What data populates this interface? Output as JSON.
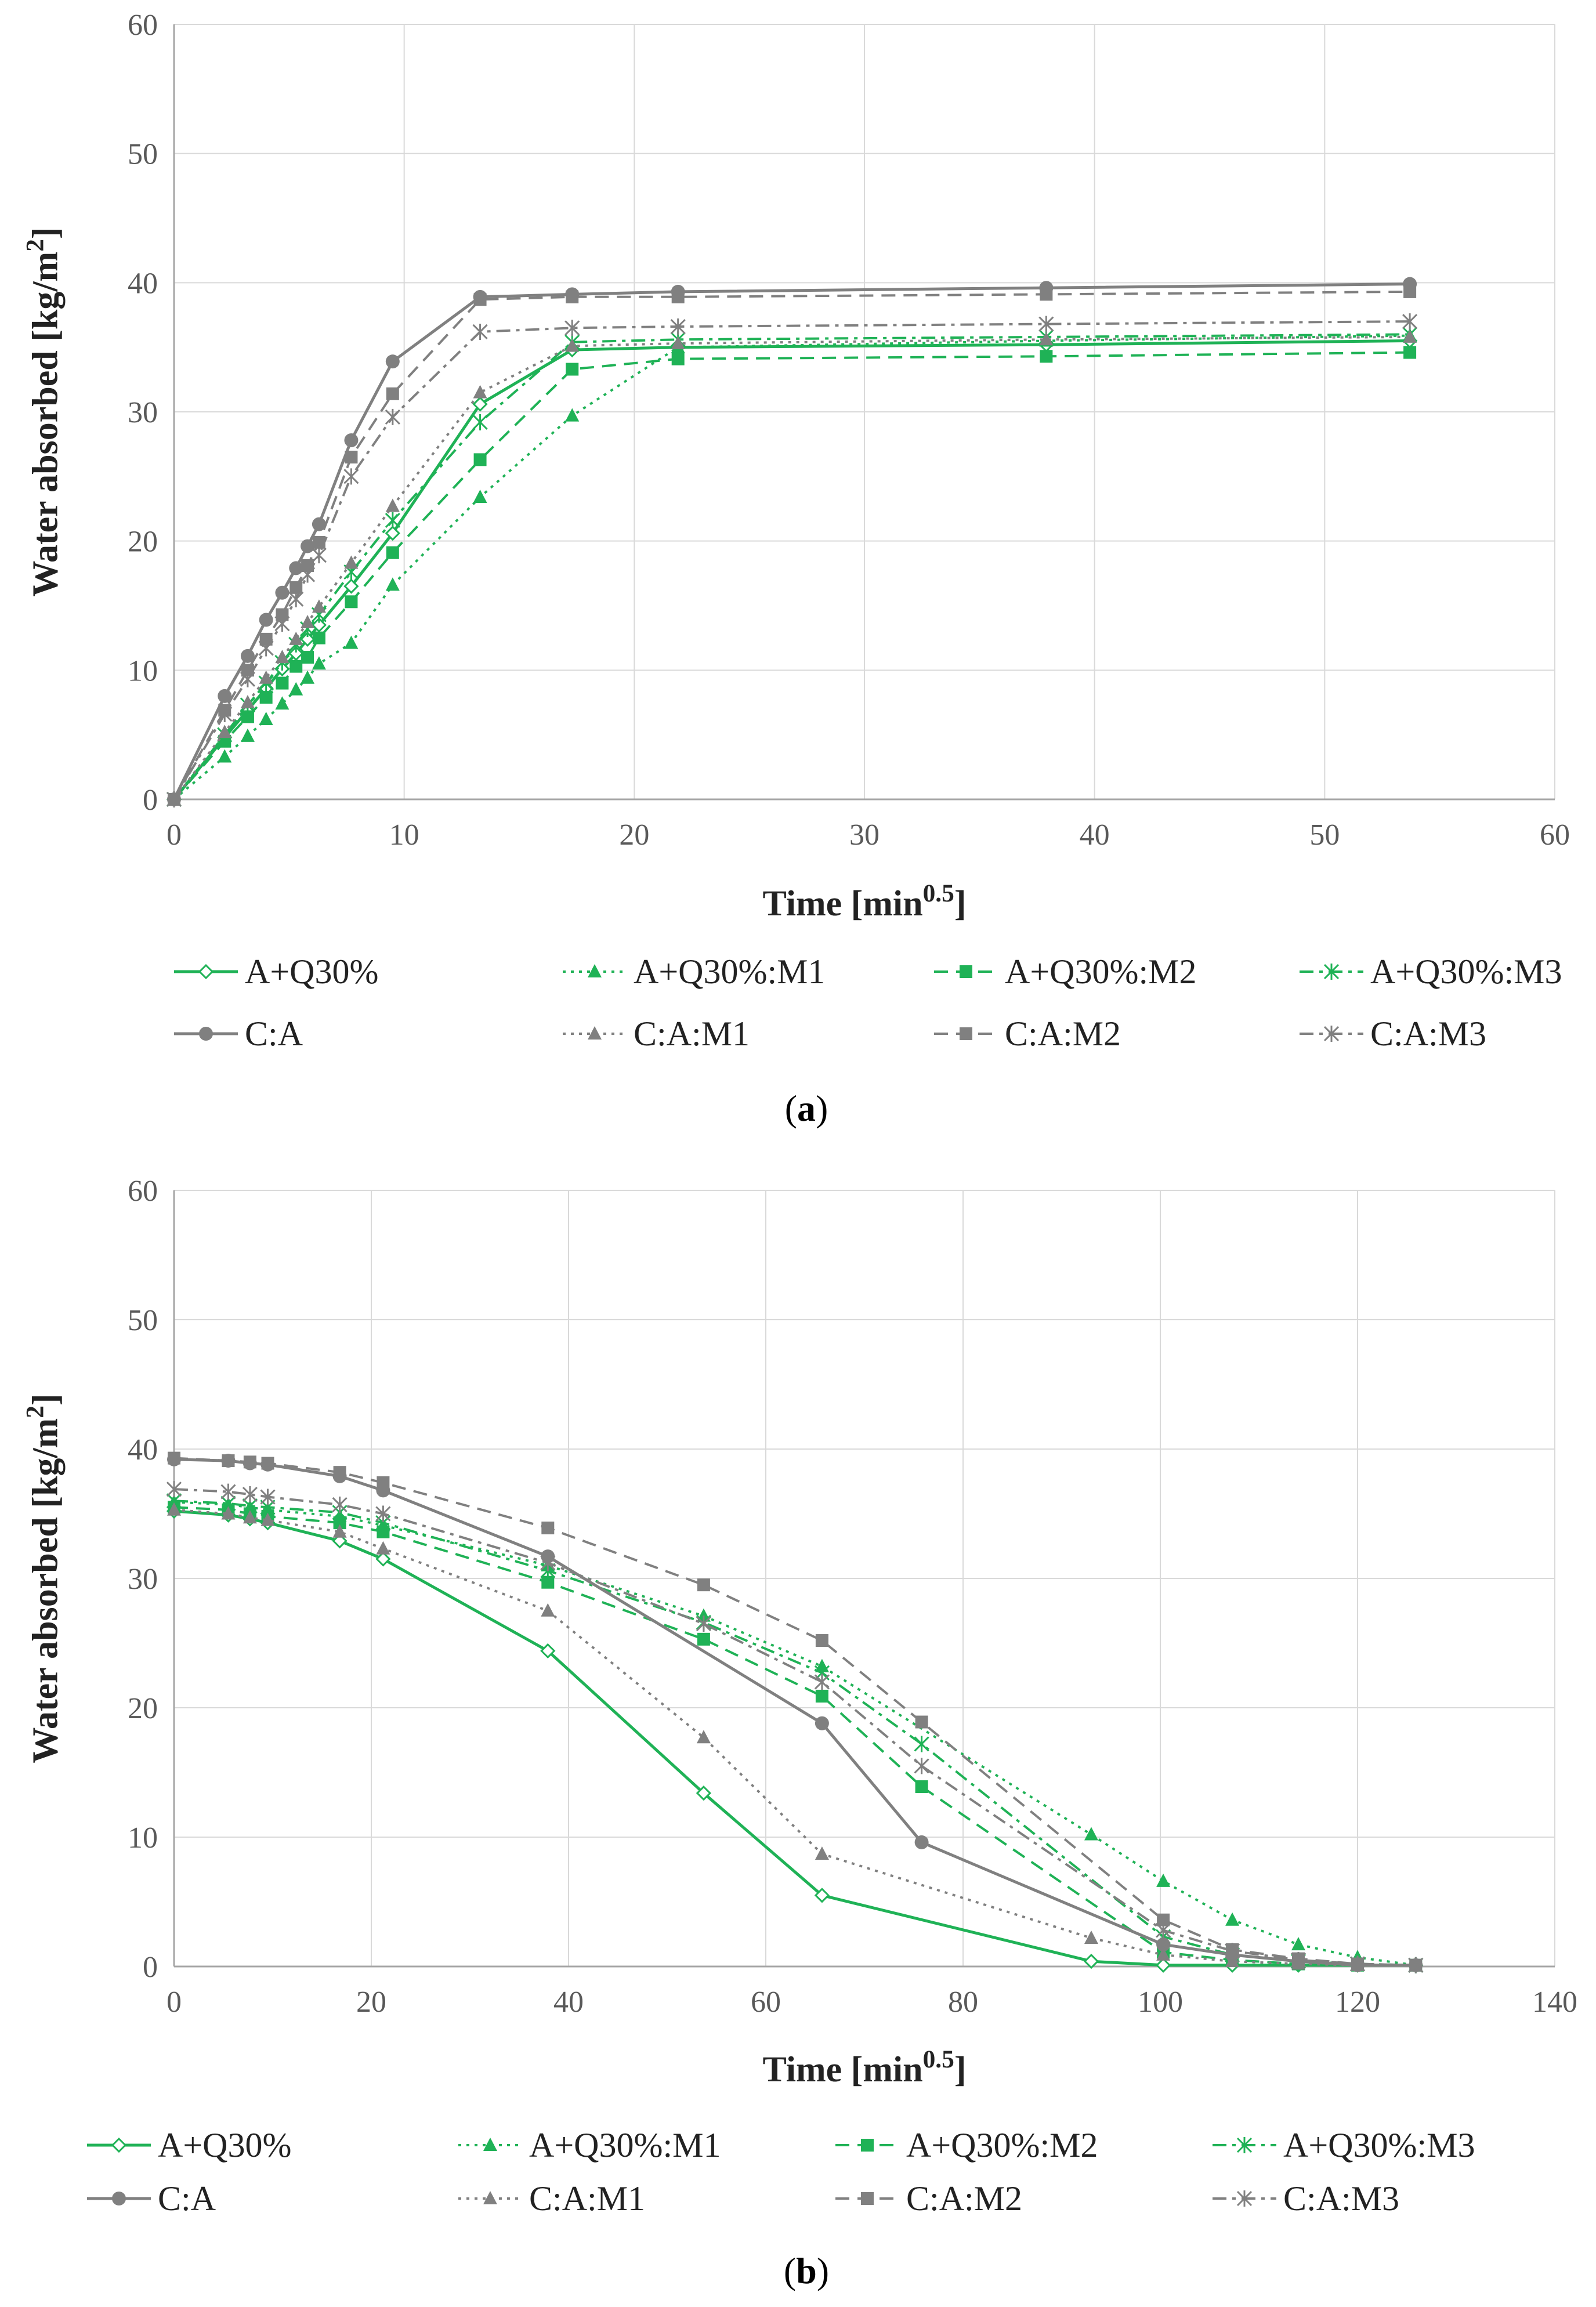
{
  "chart_data": [
    {
      "type": "line",
      "panel_label": "(a)",
      "panel_letter": "a",
      "xlabel": "Time [min",
      "xlabel_sup": "0.5",
      "xlabel_end": "]",
      "ylabel": "Water absorbed [kg/m",
      "ylabel_sup": "2",
      "ylabel_end": "]",
      "xlim": [
        0,
        60
      ],
      "ylim": [
        0,
        60
      ],
      "xticks": [
        0,
        10,
        20,
        30,
        40,
        50,
        60
      ],
      "yticks": [
        0,
        10,
        20,
        30,
        40,
        50,
        60
      ],
      "grid": true,
      "legend_position": "bottom",
      "series": [
        {
          "name": "A+Q30%",
          "color": "#1fb256",
          "dash": "solid",
          "marker": "diamond-open",
          "x": [
            0,
            2.2,
            3.2,
            4,
            4.7,
            5.3,
            5.8,
            6.3,
            7.7,
            9.5,
            13.3,
            17.3,
            21.9,
            37.9,
            53.7
          ],
          "y": [
            0,
            4.8,
            6.9,
            8.6,
            10.1,
            11.3,
            12.4,
            13.5,
            16.5,
            20.6,
            30.6,
            34.8,
            35.0,
            35.2,
            35.5
          ]
        },
        {
          "name": "A+Q30%:M1",
          "color": "#1fb256",
          "dash": "dot",
          "marker": "triangle",
          "x": [
            0,
            2.2,
            3.2,
            4,
            4.7,
            5.3,
            5.8,
            6.3,
            7.7,
            9.5,
            13.3,
            17.3,
            21.9,
            37.9,
            53.7
          ],
          "y": [
            0,
            3.3,
            4.9,
            6.2,
            7.4,
            8.5,
            9.4,
            10.5,
            12.1,
            16.6,
            23.4,
            29.7,
            35.0,
            35.5,
            35.9
          ]
        },
        {
          "name": "A+Q30%:M2",
          "color": "#1fb256",
          "dash": "dash",
          "marker": "square",
          "x": [
            0,
            2.2,
            3.2,
            4,
            4.7,
            5.3,
            5.8,
            6.3,
            7.7,
            9.5,
            13.3,
            17.3,
            21.9,
            37.9,
            53.7
          ],
          "y": [
            0,
            4.5,
            6.4,
            7.9,
            9.0,
            10.3,
            11.0,
            12.5,
            15.3,
            19.1,
            26.3,
            33.3,
            34.1,
            34.3,
            34.6
          ]
        },
        {
          "name": "A+Q30%:M3",
          "color": "#1fb256",
          "dash": "dashdot",
          "marker": "asterisk",
          "x": [
            0,
            2.2,
            3.2,
            4,
            4.7,
            5.3,
            5.8,
            6.3,
            7.7,
            9.5,
            13.3,
            17.3,
            21.9,
            37.9,
            53.7
          ],
          "y": [
            0,
            5.0,
            7.3,
            9.0,
            10.6,
            12.0,
            13.2,
            14.3,
            17.6,
            21.6,
            29.2,
            35.4,
            35.6,
            35.8,
            36.0
          ]
        },
        {
          "name": "C:A",
          "color": "#808080",
          "dash": "solid",
          "marker": "circle",
          "x": [
            0,
            2.2,
            3.2,
            4,
            4.7,
            5.3,
            5.8,
            6.3,
            7.7,
            9.5,
            13.3,
            17.3,
            21.9,
            37.9,
            53.7
          ],
          "y": [
            0,
            8.0,
            11.1,
            13.9,
            16.0,
            17.9,
            19.6,
            21.3,
            27.8,
            33.9,
            38.9,
            39.1,
            39.3,
            39.6,
            39.9
          ]
        },
        {
          "name": "C:A:M1",
          "color": "#808080",
          "dash": "dot",
          "marker": "triangle",
          "x": [
            0,
            2.2,
            3.2,
            4,
            4.7,
            5.3,
            5.8,
            6.3,
            7.7,
            9.5,
            13.3,
            17.3,
            21.9,
            37.9,
            53.7
          ],
          "y": [
            0,
            5.2,
            7.5,
            9.4,
            11.0,
            12.4,
            13.7,
            14.9,
            18.3,
            22.7,
            31.5,
            35.1,
            35.3,
            35.6,
            35.8
          ]
        },
        {
          "name": "C:A:M2",
          "color": "#808080",
          "dash": "dash",
          "marker": "square",
          "x": [
            0,
            2.2,
            3.2,
            4,
            4.7,
            5.3,
            5.8,
            6.3,
            7.7,
            9.5,
            13.3,
            17.3,
            21.9,
            37.9,
            53.7
          ],
          "y": [
            0,
            6.9,
            10.0,
            12.4,
            14.3,
            16.4,
            18.1,
            19.9,
            26.5,
            31.4,
            38.7,
            38.9,
            38.9,
            39.1,
            39.3
          ]
        },
        {
          "name": "C:A:M3",
          "color": "#808080",
          "dash": "dashdot",
          "marker": "asterisk",
          "x": [
            0,
            2.2,
            3.2,
            4,
            4.7,
            5.3,
            5.8,
            6.3,
            7.7,
            9.5,
            13.3,
            17.3,
            21.9,
            37.9,
            53.7
          ],
          "y": [
            0,
            6.6,
            9.3,
            11.7,
            13.6,
            15.5,
            17.4,
            18.9,
            25.0,
            29.6,
            36.2,
            36.5,
            36.6,
            36.8,
            37.0
          ]
        }
      ]
    },
    {
      "type": "line",
      "panel_label": "(b)",
      "panel_letter": "b",
      "xlabel": "Time [min",
      "xlabel_sup": "0.5",
      "xlabel_end": "]",
      "ylabel": "Water absorbed [kg/m",
      "ylabel_sup": "2",
      "ylabel_end": "]",
      "xlim": [
        0,
        140
      ],
      "ylim": [
        0,
        60
      ],
      "xticks": [
        0,
        20,
        40,
        60,
        80,
        100,
        120,
        140
      ],
      "yticks": [
        0,
        10,
        20,
        30,
        40,
        50,
        60
      ],
      "grid": true,
      "legend_position": "bottom",
      "series": [
        {
          "name": "A+Q30%",
          "color": "#1fb256",
          "dash": "solid",
          "marker": "diamond-open",
          "x": [
            0,
            5.5,
            7.7,
            9.5,
            16.8,
            21.2,
            37.9,
            53.7,
            65.7,
            93.0,
            100.3,
            107.3,
            114.0,
            120.0,
            125.9
          ],
          "y": [
            35.2,
            34.9,
            34.6,
            34.3,
            32.9,
            31.5,
            24.4,
            13.4,
            5.5,
            0.4,
            0.1,
            0.1,
            0.1,
            0.1,
            0.1
          ]
        },
        {
          "name": "A+Q30%:M1",
          "color": "#1fb256",
          "dash": "dot",
          "marker": "triangle",
          "x": [
            0,
            5.5,
            7.7,
            9.5,
            16.8,
            21.2,
            37.9,
            53.7,
            65.7,
            93.0,
            100.3,
            107.3,
            114.0,
            120.0,
            125.9
          ],
          "y": [
            35.9,
            35.7,
            35.5,
            35.3,
            34.8,
            34.1,
            31.0,
            27.1,
            23.2,
            10.2,
            6.6,
            3.6,
            1.7,
            0.7,
            0.1
          ]
        },
        {
          "name": "A+Q30%:M2",
          "color": "#1fb256",
          "dash": "dash",
          "marker": "square",
          "x": [
            0,
            5.5,
            7.7,
            9.5,
            16.8,
            21.2,
            37.9,
            53.7,
            65.7,
            75.8,
            100.3,
            107.3,
            114.0,
            120.0,
            125.9
          ],
          "y": [
            35.5,
            35.3,
            35.0,
            34.8,
            34.3,
            33.6,
            29.7,
            25.3,
            20.9,
            13.9,
            1.1,
            0.5,
            0.2,
            0.1,
            0.1
          ]
        },
        {
          "name": "A+Q30%:M3",
          "color": "#1fb256",
          "dash": "dashdot",
          "marker": "asterisk",
          "x": [
            0,
            5.5,
            7.7,
            9.5,
            16.8,
            21.2,
            37.9,
            53.7,
            65.7,
            75.8,
            100.3,
            107.3,
            114.0,
            120.0,
            125.9
          ],
          "y": [
            36.0,
            35.8,
            35.6,
            35.5,
            35.1,
            34.3,
            30.6,
            26.6,
            22.7,
            17.2,
            2.3,
            0.9,
            0.4,
            0.2,
            0.1
          ]
        },
        {
          "name": "C:A",
          "color": "#808080",
          "dash": "solid",
          "marker": "circle",
          "x": [
            0,
            5.5,
            7.7,
            9.5,
            16.8,
            21.2,
            37.9,
            65.7,
            75.8,
            100.3,
            107.3,
            114.0,
            120.0,
            125.9
          ],
          "y": [
            39.2,
            39.1,
            38.9,
            38.8,
            37.9,
            36.8,
            31.7,
            18.8,
            9.6,
            1.7,
            0.9,
            0.4,
            0.1,
            0.1
          ]
        },
        {
          "name": "C:A:M1",
          "color": "#808080",
          "dash": "dot",
          "marker": "triangle",
          "x": [
            0,
            5.5,
            7.7,
            9.5,
            16.8,
            21.2,
            37.9,
            53.7,
            65.7,
            93.0,
            100.3,
            107.3,
            114.0,
            120.0,
            125.9
          ],
          "y": [
            35.3,
            35.0,
            34.7,
            34.5,
            33.6,
            32.3,
            27.5,
            17.7,
            8.7,
            2.2,
            0.9,
            0.4,
            0.2,
            0.1,
            0.1
          ]
        },
        {
          "name": "C:A:M2",
          "color": "#808080",
          "dash": "dash",
          "marker": "square",
          "x": [
            0,
            5.5,
            7.7,
            9.5,
            16.8,
            21.2,
            37.9,
            53.7,
            65.7,
            75.8,
            100.3,
            107.3,
            114.0,
            120.0,
            125.9
          ],
          "y": [
            39.3,
            39.1,
            39.0,
            38.9,
            38.2,
            37.4,
            33.9,
            29.5,
            25.2,
            18.9,
            3.6,
            1.3,
            0.6,
            0.2,
            0.1
          ]
        },
        {
          "name": "C:A:M3",
          "color": "#808080",
          "dash": "dashdot",
          "marker": "asterisk",
          "x": [
            0,
            5.5,
            7.7,
            9.5,
            16.8,
            21.2,
            37.9,
            53.7,
            65.7,
            75.8,
            100.3,
            107.3,
            114.0,
            120.0,
            125.9
          ],
          "y": [
            36.9,
            36.7,
            36.5,
            36.3,
            35.7,
            35.0,
            31.2,
            26.5,
            22.0,
            15.5,
            2.8,
            1.2,
            0.5,
            0.2,
            0.1
          ]
        }
      ]
    }
  ]
}
